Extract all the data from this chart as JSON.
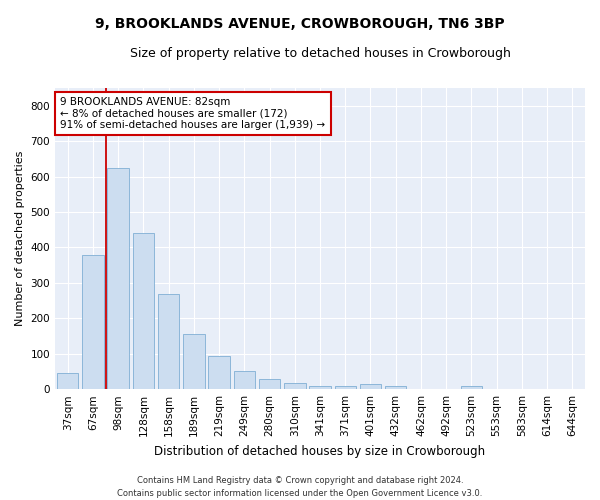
{
  "title": "9, BROOKLANDS AVENUE, CROWBOROUGH, TN6 3BP",
  "subtitle": "Size of property relative to detached houses in Crowborough",
  "xlabel": "Distribution of detached houses by size in Crowborough",
  "ylabel": "Number of detached properties",
  "categories": [
    "37sqm",
    "67sqm",
    "98sqm",
    "128sqm",
    "158sqm",
    "189sqm",
    "219sqm",
    "249sqm",
    "280sqm",
    "310sqm",
    "341sqm",
    "371sqm",
    "401sqm",
    "432sqm",
    "462sqm",
    "492sqm",
    "523sqm",
    "553sqm",
    "583sqm",
    "614sqm",
    "644sqm"
  ],
  "values": [
    45,
    380,
    625,
    440,
    270,
    155,
    95,
    52,
    28,
    18,
    10,
    10,
    15,
    8,
    0,
    0,
    8,
    0,
    0,
    0,
    0
  ],
  "bar_color": "#ccddf0",
  "bar_edge_color": "#80afd4",
  "annotation_text": "9 BROOKLANDS AVENUE: 82sqm\n← 8% of detached houses are smaller (172)\n91% of semi-detached houses are larger (1,939) →",
  "annotation_box_facecolor": "#ffffff",
  "annotation_box_edge": "#cc0000",
  "vline_color": "#cc0000",
  "vline_x_index": 1.5,
  "footer": "Contains HM Land Registry data © Crown copyright and database right 2024.\nContains public sector information licensed under the Open Government Licence v3.0.",
  "ylim": [
    0,
    850
  ],
  "yticks": [
    0,
    100,
    200,
    300,
    400,
    500,
    600,
    700,
    800
  ],
  "fig_facecolor": "#ffffff",
  "plot_facecolor": "#e8eef8",
  "grid_color": "#ffffff",
  "title_fontsize": 10,
  "subtitle_fontsize": 9,
  "xlabel_fontsize": 8.5,
  "ylabel_fontsize": 8,
  "tick_fontsize": 7.5,
  "annot_fontsize": 7.5,
  "footer_fontsize": 6
}
